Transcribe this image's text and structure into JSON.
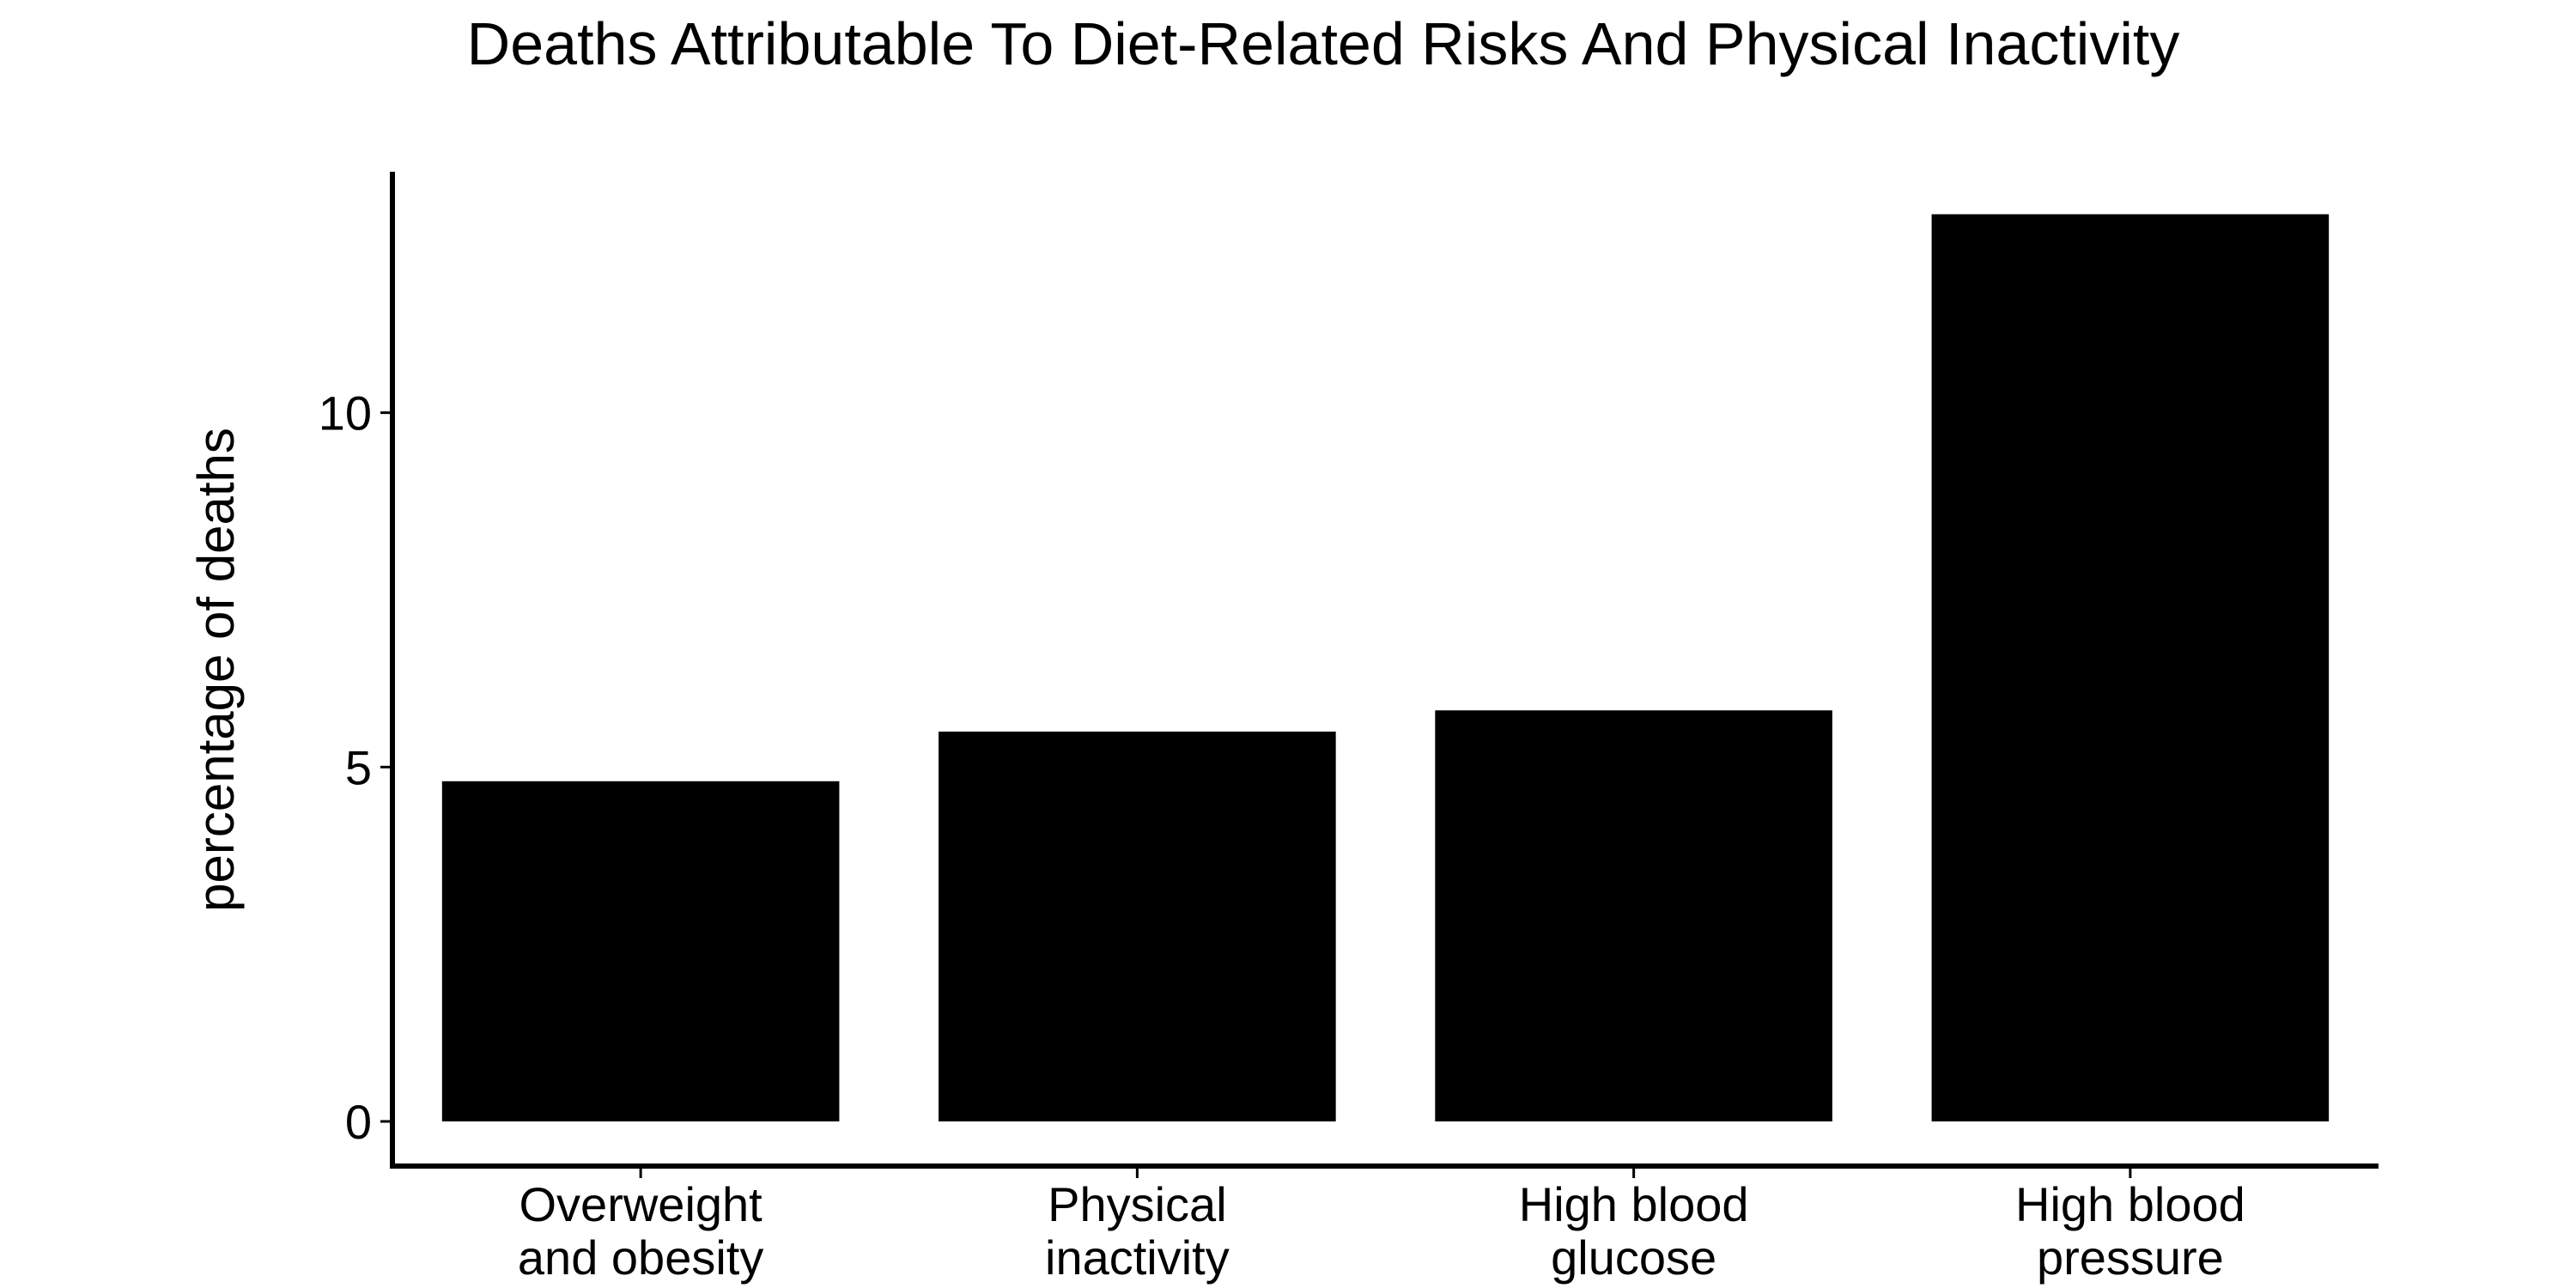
{
  "chart_data": {
    "type": "bar",
    "title": "Deaths Attributable To Diet-Related Risks And Physical Inactivity",
    "xlabel": "",
    "ylabel": "percentage of deaths",
    "categories": [
      [
        "Overweight",
        "and obesity"
      ],
      [
        "Physical",
        "inactivity"
      ],
      [
        "High blood",
        "glucose"
      ],
      [
        "High blood",
        "pressure"
      ]
    ],
    "values": [
      4.8,
      5.5,
      5.8,
      12.8
    ],
    "ylim": [
      0,
      13.4
    ],
    "yticks": [
      0,
      5,
      10
    ],
    "grid": false,
    "legend": "none",
    "bar_color": "#000000",
    "axis_color": "#000000"
  }
}
